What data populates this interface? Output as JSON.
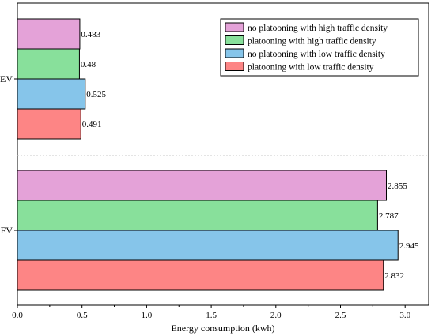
{
  "chart_data": {
    "type": "bar",
    "orientation": "horizontal",
    "categories": [
      "EV",
      "FV"
    ],
    "series": [
      {
        "name": "no platooning with high traffic density",
        "color": "#e4a2d8",
        "values": [
          0.483,
          2.855
        ]
      },
      {
        "name": "platooning with high traffic density",
        "color": "#88e09b",
        "values": [
          0.48,
          2.787
        ]
      },
      {
        "name": "no platooning with low traffic density",
        "color": "#86c5ea",
        "values": [
          0.525,
          2.945
        ]
      },
      {
        "name": "platooning with low traffic density",
        "color": "#fd8585",
        "values": [
          0.491,
          2.832
        ]
      }
    ],
    "data_labels": [
      [
        "0.483",
        "2.855"
      ],
      [
        "0.48",
        "2.787"
      ],
      [
        "0.525",
        "2.945"
      ],
      [
        "0.491",
        "2.832"
      ]
    ],
    "xlabel": "Energy consumption (kwh)",
    "ylabel": "",
    "xlim": [
      0.0,
      3.2
    ],
    "xticks": [
      "0.0",
      "0.5",
      "1.0",
      "1.5",
      "2.0",
      "2.5",
      "3.0"
    ],
    "grid": false,
    "legend": "top-right",
    "category_separator": "dotted line"
  }
}
